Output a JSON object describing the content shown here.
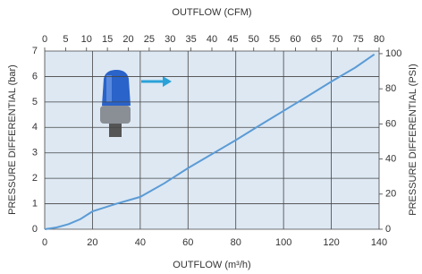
{
  "chart_data": {
    "type": "line",
    "title": "OUTFLOW (CFM)",
    "x_label": "OUTFLOW (m³/h)",
    "y_label": "PRESSURE DIFFERENTIAL (bar)",
    "y2_label": "PRESSURE DIFFERENTIAL (PSI)",
    "x": [
      0,
      5,
      10,
      15,
      20,
      30,
      40,
      50,
      60,
      70,
      80,
      90,
      100,
      110,
      120,
      130,
      138
    ],
    "series": [
      {
        "color": "#5b9bd5",
        "values": [
          0,
          0.07,
          0.2,
          0.4,
          0.7,
          1.0,
          1.27,
          1.8,
          2.4,
          2.95,
          3.5,
          4.08,
          4.65,
          5.22,
          5.8,
          6.35,
          6.87
        ]
      }
    ],
    "xlim": [
      0,
      140
    ],
    "xticks": [
      0,
      20,
      40,
      60,
      80,
      100,
      120,
      140
    ],
    "x2lim": [
      0,
      80
    ],
    "x2ticks": [
      0,
      5,
      10,
      15,
      20,
      25,
      30,
      35,
      40,
      45,
      50,
      55,
      60,
      65,
      70,
      75,
      80
    ],
    "ylim": [
      0,
      7
    ],
    "yticks": [
      0,
      1,
      2,
      3,
      4,
      5,
      6,
      7
    ],
    "y2lim": [
      0,
      101.5
    ],
    "y2ticks": [
      0,
      20,
      40,
      60,
      80,
      100
    ],
    "grid": true
  }
}
